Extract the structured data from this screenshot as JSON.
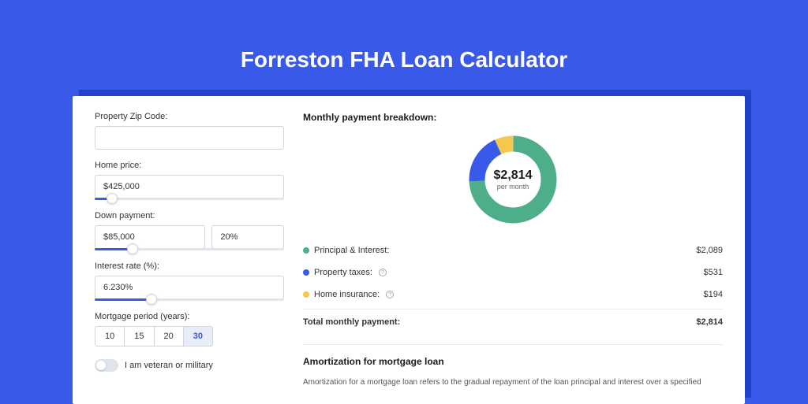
{
  "colors": {
    "page_bg": "#3959e9",
    "card_shadow": "#2340c8",
    "card_bg": "#ffffff",
    "border": "#d0d4dc",
    "slider_track": "#e0e4ec",
    "slider_fill": "#3959e9",
    "text": "#333333",
    "muted": "#666666"
  },
  "header": {
    "title": "Forreston FHA Loan Calculator"
  },
  "form": {
    "zip": {
      "label": "Property Zip Code:",
      "value": ""
    },
    "price": {
      "label": "Home price:",
      "value": "$425,000",
      "slider_pct": 9
    },
    "down": {
      "label": "Down payment:",
      "amount": "$85,000",
      "pct": "20%",
      "slider_pct": 20
    },
    "rate": {
      "label": "Interest rate (%):",
      "value": "6.230%",
      "slider_pct": 30
    },
    "period": {
      "label": "Mortgage period (years):",
      "options": [
        "10",
        "15",
        "20",
        "30"
      ],
      "selected": "30"
    },
    "veteran": {
      "label": "I am veteran or military",
      "on": false
    }
  },
  "breakdown": {
    "title": "Monthly payment breakdown:",
    "donut": {
      "amount": "$2,814",
      "sub": "per month",
      "segments": [
        {
          "key": "principal",
          "value": 2089,
          "color": "#4eae8a"
        },
        {
          "key": "taxes",
          "value": 531,
          "color": "#3959e9"
        },
        {
          "key": "insurance",
          "value": 194,
          "color": "#f5c84c"
        }
      ]
    },
    "rows": [
      {
        "label": "Principal & Interest:",
        "amount": "$2,089",
        "dot": "#4eae8a",
        "info": false
      },
      {
        "label": "Property taxes:",
        "amount": "$531",
        "dot": "#3959e9",
        "info": true
      },
      {
        "label": "Home insurance:",
        "amount": "$194",
        "dot": "#f5c84c",
        "info": true
      }
    ],
    "total": {
      "label": "Total monthly payment:",
      "amount": "$2,814"
    }
  },
  "amortization": {
    "title": "Amortization for mortgage loan",
    "text": "Amortization for a mortgage loan refers to the gradual repayment of the loan principal and interest over a specified"
  }
}
